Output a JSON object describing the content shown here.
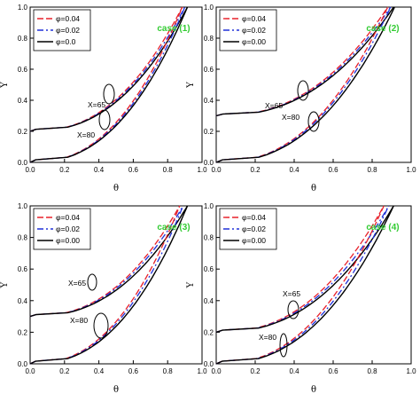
{
  "chart_data": [
    {
      "type": "line",
      "panel": "case (1)",
      "title": "case (1)",
      "xlabel": "θ",
      "ylabel": "Y",
      "xlim": [
        0,
        1
      ],
      "ylim": [
        0,
        1
      ],
      "xticks": [
        "0.0",
        "0.2",
        "0.4",
        "0.6",
        "0.8",
        "1.0"
      ],
      "yticks": [
        "0.0",
        "0.2",
        "0.4",
        "0.6",
        "0.8",
        "1.0"
      ],
      "grid": false,
      "legend_position": "top-left",
      "legend": [
        "φ=0.04",
        "φ=0.02",
        "φ=0.0"
      ],
      "series_styles": [
        {
          "legend": "φ=0.04",
          "color": "#e8202a",
          "dash": "dashed"
        },
        {
          "legend": "φ=0.02",
          "color": "#2030d8",
          "dash": "dashdot"
        },
        {
          "legend": "φ=0.0",
          "color": "#000000",
          "dash": "solid"
        }
      ],
      "annotations": [
        "X=65",
        "X=80"
      ],
      "curves": [
        {
          "label": "X=65",
          "y0": 0.2,
          "theta_end": [
            0.885,
            0.9,
            0.915
          ]
        },
        {
          "label": "X=80",
          "y0": 0.0,
          "theta_end": [
            0.885,
            0.9,
            0.915
          ]
        }
      ]
    },
    {
      "type": "line",
      "panel": "case (2)",
      "title": "case (2)",
      "xlabel": "θ",
      "ylabel": "Y",
      "xlim": [
        0,
        1
      ],
      "ylim": [
        0,
        1
      ],
      "xticks": [
        "0.0",
        "0.2",
        "0.4",
        "0.6",
        "0.8",
        "1.0"
      ],
      "yticks": [
        "0.0",
        "0.2",
        "0.4",
        "0.6",
        "0.8",
        "1.0"
      ],
      "grid": false,
      "legend_position": "top-left",
      "legend": [
        "φ=0.04",
        "φ=0.02",
        "φ=0.00"
      ],
      "series_styles": [
        {
          "legend": "φ=0.04",
          "color": "#e8202a",
          "dash": "dashed"
        },
        {
          "legend": "φ=0.02",
          "color": "#2030d8",
          "dash": "dashdot"
        },
        {
          "legend": "φ=0.00",
          "color": "#000000",
          "dash": "solid"
        }
      ],
      "annotations": [
        "X=65",
        "X=80"
      ],
      "curves": [
        {
          "label": "X=65",
          "y0": 0.3,
          "theta_end": [
            0.88,
            0.895,
            0.91
          ]
        },
        {
          "label": "X=80",
          "y0": 0.0,
          "theta_end": [
            0.88,
            0.895,
            0.915
          ]
        }
      ]
    },
    {
      "type": "line",
      "panel": "case (3)",
      "title": "case (3)",
      "xlabel": "θ",
      "ylabel": "Y",
      "xlim": [
        0,
        1
      ],
      "ylim": [
        0,
        1
      ],
      "xticks": [
        "0.0",
        "0.2",
        "0.4",
        "0.6",
        "0.8",
        "1.0"
      ],
      "yticks": [
        "0.0",
        "0.2",
        "0.4",
        "0.6",
        "0.8",
        "1.0"
      ],
      "grid": false,
      "legend_position": "top-left",
      "legend": [
        "φ=0.04",
        "φ=0.02",
        "φ=0.00"
      ],
      "series_styles": [
        {
          "legend": "φ=0.04",
          "color": "#e8202a",
          "dash": "dashed"
        },
        {
          "legend": "φ=0.02",
          "color": "#2030d8",
          "dash": "dashdot"
        },
        {
          "legend": "φ=0.00",
          "color": "#000000",
          "dash": "solid"
        }
      ],
      "annotations": [
        "X=65",
        "X=80"
      ],
      "curves": [
        {
          "label": "X=65",
          "y0": 0.3,
          "theta_end": [
            0.87,
            0.89,
            0.915
          ]
        },
        {
          "label": "X=80",
          "y0": 0.0,
          "theta_end": [
            0.87,
            0.89,
            0.915
          ]
        }
      ]
    },
    {
      "type": "line",
      "panel": "case (4)",
      "title": "case (4)",
      "xlabel": "θ",
      "ylabel": "Y",
      "xlim": [
        0,
        1
      ],
      "ylim": [
        0,
        1
      ],
      "xticks": [
        "0.0",
        "0.2",
        "0.4",
        "0.6",
        "0.8",
        "1.0"
      ],
      "yticks": [
        "0.0",
        "0.2",
        "0.4",
        "0.6",
        "0.8",
        "1.0"
      ],
      "grid": false,
      "legend_position": "top-left",
      "legend": [
        "φ=0.04",
        "φ=0.02",
        "φ=0.00"
      ],
      "series_styles": [
        {
          "legend": "φ=0.04",
          "color": "#e8202a",
          "dash": "dashed"
        },
        {
          "legend": "φ=0.02",
          "color": "#2030d8",
          "dash": "dashdot"
        },
        {
          "legend": "φ=0.00",
          "color": "#000000",
          "dash": "solid"
        }
      ],
      "annotations": [
        "X=65",
        "X=80"
      ],
      "curves": [
        {
          "label": "X=65",
          "y0": 0.2,
          "theta_end": [
            0.86,
            0.885,
            0.91
          ]
        },
        {
          "label": "X=80",
          "y0": 0.0,
          "theta_end": [
            0.86,
            0.885,
            0.91
          ]
        }
      ]
    }
  ]
}
